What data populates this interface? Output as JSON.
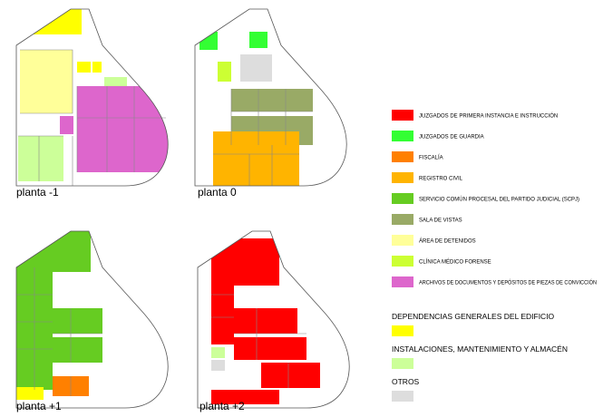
{
  "plans": [
    {
      "label": "planta -1"
    },
    {
      "label": "planta 0"
    },
    {
      "label": "planta +1"
    },
    {
      "label": "planta +2"
    }
  ],
  "legend": {
    "items": [
      {
        "label": "JUZGADOS DE PRIMERA INSTANCIA E INSTRUCCIÓN",
        "color": "#ff0000"
      },
      {
        "label": "JUZGADOS DE GUARDIA",
        "color": "#33ff33"
      },
      {
        "label": "FISCALÍA",
        "color": "#ff8000"
      },
      {
        "label": "REGISTRO CIVIL",
        "color": "#ffb400"
      },
      {
        "label": "SERVICIO COMÚN PROCESAL DEL PARTIDO JUDICIAL (SCPJ)",
        "color": "#66cc22"
      },
      {
        "label": "SALA DE VISTAS",
        "color": "#99aa66"
      },
      {
        "label": "ÁREA DE DETENIDOS",
        "color": "#ffff99"
      },
      {
        "label": "CLÍNICA MÉDICO FORENSE",
        "color": "#ccff33"
      },
      {
        "label": "ARCHIVOS DE DOCUMENTOS Y DEPÓSITOS DE PIEZAS DE CONVICCIÓN",
        "color": "#dd66cc"
      }
    ],
    "groups": [
      {
        "label": "DEPENDENCIAS GENERALES DEL EDIFICIO",
        "color": "#ffff00"
      },
      {
        "label": "INSTALACIONES, MANTENIMIENTO Y ALMACÉN",
        "color": "#ccff99"
      },
      {
        "label": "OTROS",
        "color": "#dddddd"
      }
    ]
  }
}
